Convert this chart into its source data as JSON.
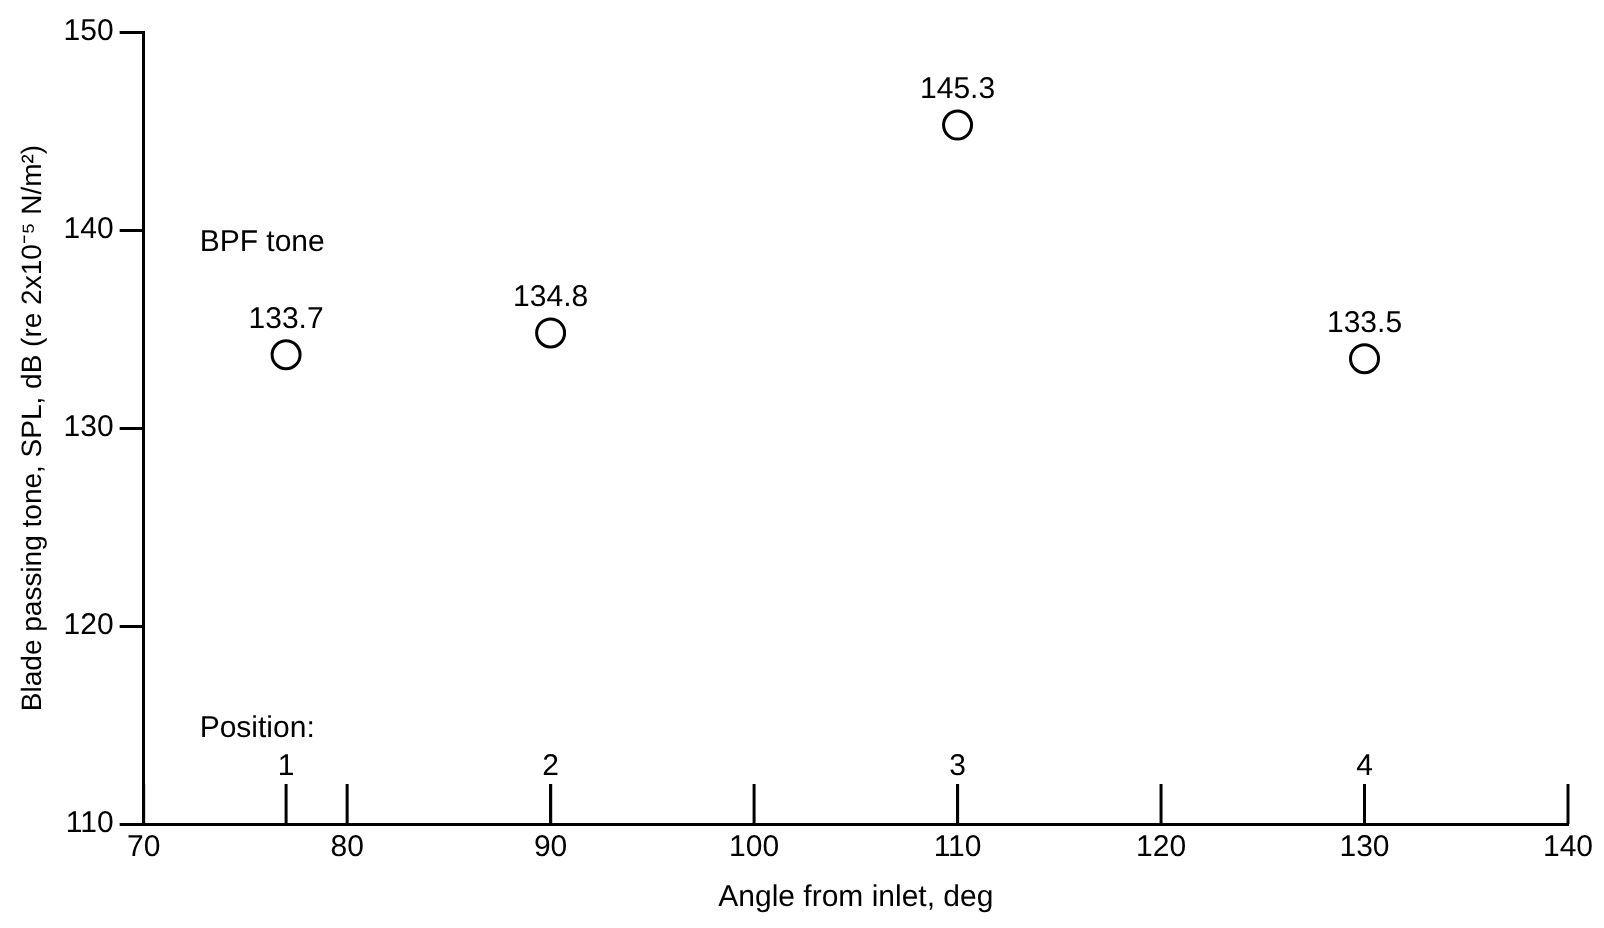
{
  "chart_data": {
    "type": "scatter",
    "xlabel": "Angle from inlet, deg",
    "ylabel": "Blade passing tone, SPL, dB (re 2x10⁻⁵ N/m²)",
    "x": [
      77,
      90,
      110,
      130
    ],
    "series": [
      {
        "color": "#000000",
        "values": [
          133.7,
          134.8,
          145.3,
          133.5
        ]
      }
    ],
    "xlim": [
      70,
      140
    ],
    "xticks": [
      70,
      80,
      90,
      100,
      110,
      120,
      130,
      140
    ],
    "ylim": [
      110,
      150
    ],
    "yticks": [
      110,
      120,
      130,
      140,
      150
    ],
    "grid": false,
    "legend": false,
    "marker": "circle",
    "data_labels": true,
    "annotations": [
      "BPF tone",
      "Position:",
      "1",
      "2",
      "3",
      "4"
    ]
  }
}
